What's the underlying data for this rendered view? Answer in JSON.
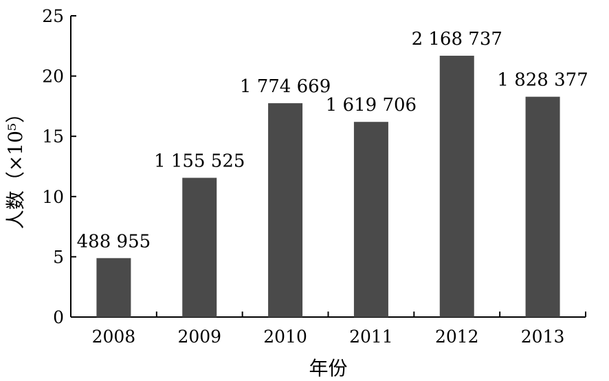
{
  "chart_data": {
    "type": "bar",
    "categories": [
      "2008",
      "2009",
      "2010",
      "2011",
      "2012",
      "2013"
    ],
    "values": [
      4.88955,
      11.55525,
      17.74669,
      16.19706,
      21.68737,
      18.28377
    ],
    "data_labels": [
      "488 955",
      "1 155 525",
      "1 774 669",
      "1 619 706",
      "2 168 737",
      "1 828 377"
    ],
    "xlabel": "年份",
    "ylabel": "人数（×10⁵）",
    "ylim": [
      0,
      25
    ],
    "yticks": [
      0,
      5,
      10,
      15,
      20,
      25
    ],
    "grid": false,
    "colors": {
      "bar": "#4a4a4a",
      "axis": "#000000"
    }
  }
}
